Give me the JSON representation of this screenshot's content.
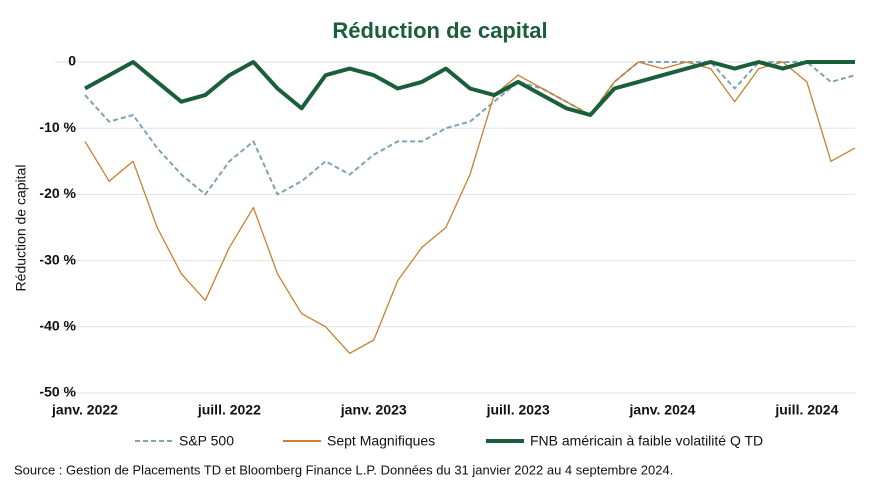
{
  "chart_data": {
    "type": "line",
    "title": "Réduction de capital",
    "y_label": "Réduction de capital",
    "source": "Source : Gestion de Placements TD et Bloomberg Finance L.P. Données du 31 janvier 2022 au 4 septembre 2024.",
    "categories": [
      "janv. 2022",
      null,
      null,
      null,
      null,
      null,
      "juill. 2022",
      null,
      null,
      null,
      null,
      null,
      "janv. 2023",
      null,
      null,
      null,
      null,
      null,
      "juill. 2023",
      null,
      null,
      null,
      null,
      null,
      "janv. 2024",
      null,
      null,
      null,
      null,
      null,
      "juill. 2024",
      null,
      null
    ],
    "ylim": [
      -50,
      0
    ],
    "yticks": [
      {
        "value": -50,
        "label": "-50 %"
      },
      {
        "value": -40,
        "label": "-40 %"
      },
      {
        "value": -30,
        "label": "-30 %"
      },
      {
        "value": -20,
        "label": "-20 %"
      },
      {
        "value": -10,
        "label": "-10 %"
      },
      0
    ],
    "grid": true,
    "series": [
      {
        "name": "S&P 500",
        "color": "#7fa3b4",
        "dashed": true,
        "values": [
          -5,
          -9,
          -8,
          -13,
          -17,
          -20,
          -15,
          -12,
          -20,
          -18,
          -15,
          -17,
          -14,
          -12,
          -12,
          -10,
          -9,
          -6,
          -3,
          -4,
          -6,
          -8,
          -3,
          0,
          0,
          0,
          0,
          -4,
          0,
          0,
          0,
          -3,
          -2
        ]
      },
      {
        "name": "Sept Magnifiques",
        "color": "#c8812e",
        "dashed": false,
        "values": [
          -12,
          -18,
          -15,
          -25,
          -32,
          -36,
          -28,
          -22,
          -32,
          -38,
          -40,
          -44,
          -42,
          -33,
          -28,
          -25,
          -17,
          -5,
          -2,
          -4,
          -6,
          -8,
          -3,
          0,
          -1,
          0,
          -1,
          -6,
          -1,
          0,
          -3,
          -15,
          -13
        ]
      },
      {
        "name": "FNB américain à faible volatilité Q TD",
        "color": "#1b5e3b",
        "dashed": false,
        "values": [
          -4,
          -2,
          0,
          -3,
          -6,
          -5,
          -2,
          0,
          -4,
          -7,
          -2,
          -1,
          -2,
          -4,
          -3,
          -1,
          -4,
          -5,
          -3,
          -5,
          -7,
          -8,
          -4,
          -3,
          -2,
          -1,
          0,
          -1,
          0,
          -1,
          0,
          0,
          0
        ]
      }
    ]
  }
}
